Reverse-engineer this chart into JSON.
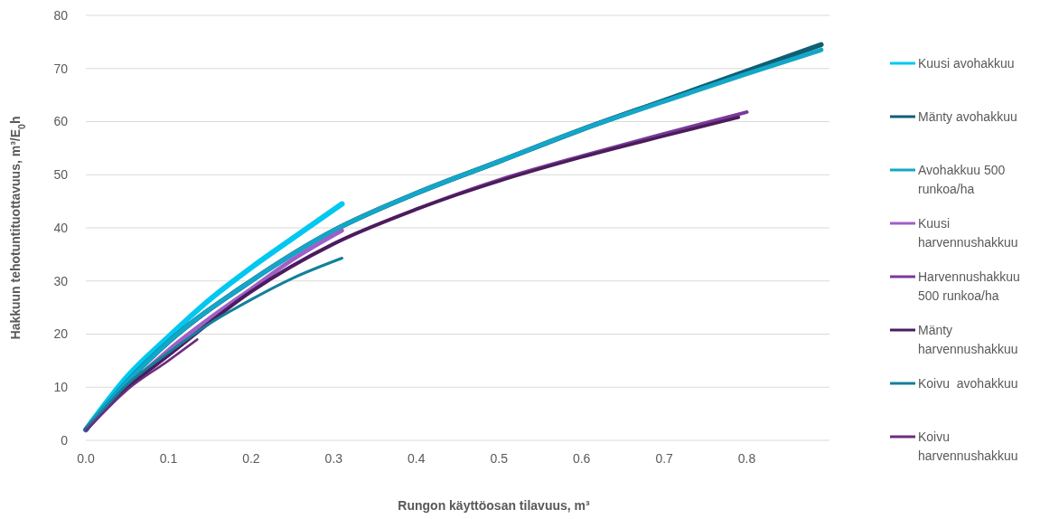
{
  "chart_data": {
    "type": "line",
    "xlabel": "Rungon käyttöosan tilavuus, m³",
    "ylabel": "Hakkuun tehotuntituottavuus, m³/E$_{0}$h",
    "xlim": [
      0,
      0.9
    ],
    "xticks": [
      {
        "value": 0,
        "label": "0.0"
      },
      0.1,
      0.2,
      0.3,
      0.4,
      0.5,
      0.6,
      0.7,
      0.8
    ],
    "ylim": [
      0,
      80
    ],
    "yticks": [
      0,
      10,
      20,
      30,
      40,
      50,
      60,
      70,
      80
    ],
    "grid": "y",
    "legend": "right",
    "marker": "none",
    "line_style": "solid",
    "series": [
      {
        "name": "Kuusi avohakkuu",
        "color": "#00c8f0",
        "x": [
          0,
          0.05,
          0.1,
          0.15,
          0.2,
          0.25,
          0.31
        ],
        "values": [
          2,
          12,
          19.5,
          26.5,
          32.5,
          38,
          44.5
        ]
      },
      {
        "name": "Mänty avohakkuu",
        "color": "#0e5f74",
        "x": [
          0,
          0.05,
          0.1,
          0.2,
          0.3,
          0.4,
          0.5,
          0.6,
          0.7,
          0.8,
          0.89
        ],
        "values": [
          2,
          11,
          18.5,
          30,
          39.5,
          46.5,
          52.5,
          58.5,
          64,
          69.5,
          74.5
        ]
      },
      {
        "name": "Avohakkuu 500 runkoa/ha",
        "color": "#14a6c8",
        "x": [
          0,
          0.05,
          0.1,
          0.2,
          0.3,
          0.4,
          0.5,
          0.6,
          0.7,
          0.8,
          0.89
        ],
        "values": [
          2,
          11,
          18.5,
          30,
          39.5,
          46.5,
          52.5,
          58.5,
          63.8,
          69,
          73.5
        ]
      },
      {
        "name": "Kuusi harvennushakkuu",
        "color": "#a05fc8",
        "x": [
          0,
          0.05,
          0.1,
          0.15,
          0.2,
          0.25,
          0.31
        ],
        "values": [
          2,
          10,
          17,
          23,
          28.5,
          34,
          39.5
        ]
      },
      {
        "name": "Harvennushakkuu 500 runkoa/ha",
        "color": "#7a3a9a",
        "x": [
          0,
          0.05,
          0.1,
          0.2,
          0.3,
          0.4,
          0.5,
          0.6,
          0.7,
          0.8
        ],
        "values": [
          2,
          9.8,
          16,
          28,
          37,
          43.5,
          49,
          53.5,
          57.7,
          61.8
        ]
      },
      {
        "name": "Mänty harvennushakkuu",
        "color": "#4a1d5a",
        "x": [
          0,
          0.05,
          0.1,
          0.2,
          0.3,
          0.4,
          0.5,
          0.6,
          0.7,
          0.79
        ],
        "values": [
          2,
          9.8,
          16,
          28,
          37,
          43.5,
          48.8,
          53.3,
          57.3,
          60.8
        ]
      },
      {
        "name": "Koivu  avohakkuu",
        "color": "#13809a",
        "x": [
          0,
          0.05,
          0.1,
          0.15,
          0.2,
          0.25,
          0.31
        ],
        "values": [
          2,
          10.5,
          16.5,
          22,
          26.5,
          30.5,
          34.3
        ]
      },
      {
        "name": "Koivu harvennushakkuu",
        "color": "#6a2e80",
        "x": [
          0,
          0.05,
          0.1,
          0.135
        ],
        "values": [
          1.8,
          9.5,
          15,
          19
        ]
      }
    ]
  }
}
